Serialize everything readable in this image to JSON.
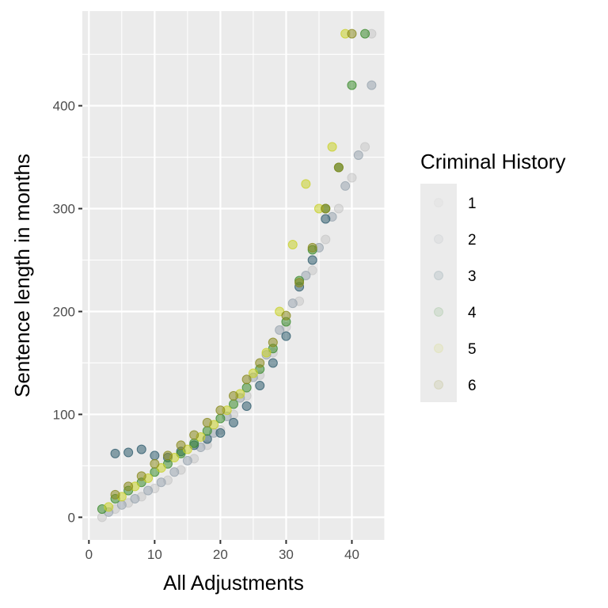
{
  "chart_data": {
    "type": "scatter",
    "title": "",
    "xlabel": "All Adjustments",
    "ylabel": "Sentence length in months",
    "xlim": [
      -1,
      45
    ],
    "ylim": [
      -22,
      492
    ],
    "x_ticks": [
      0,
      10,
      20,
      30,
      40
    ],
    "y_ticks": [
      0,
      100,
      200,
      300,
      400
    ],
    "grid": true,
    "panel_background": "#ebebeb",
    "legend": {
      "title": "Criminal History",
      "position": "right",
      "entries": [
        "1",
        "2",
        "3",
        "4",
        "5",
        "6"
      ]
    },
    "series": [
      {
        "name": "1",
        "color": "#c8c8c8",
        "points": [
          [
            2,
            0
          ],
          [
            4,
            8
          ],
          [
            6,
            14
          ],
          [
            8,
            20
          ],
          [
            10,
            28
          ],
          [
            12,
            36
          ],
          [
            14,
            46
          ],
          [
            16,
            57
          ],
          [
            18,
            70
          ],
          [
            20,
            85
          ],
          [
            22,
            100
          ],
          [
            24,
            118
          ],
          [
            26,
            138
          ],
          [
            28,
            160
          ],
          [
            30,
            185
          ],
          [
            32,
            210
          ],
          [
            34,
            240
          ],
          [
            36,
            270
          ],
          [
            38,
            300
          ],
          [
            40,
            330
          ],
          [
            42,
            360
          ],
          [
            43,
            470
          ]
        ]
      },
      {
        "name": "2",
        "color": "#9aa6b0",
        "points": [
          [
            3,
            5
          ],
          [
            5,
            12
          ],
          [
            7,
            18
          ],
          [
            9,
            26
          ],
          [
            11,
            34
          ],
          [
            13,
            44
          ],
          [
            15,
            55
          ],
          [
            17,
            68
          ],
          [
            19,
            82
          ],
          [
            21,
            98
          ],
          [
            23,
            116
          ],
          [
            25,
            136
          ],
          [
            27,
            158
          ],
          [
            29,
            182
          ],
          [
            31,
            208
          ],
          [
            33,
            235
          ],
          [
            35,
            262
          ],
          [
            37,
            292
          ],
          [
            39,
            322
          ],
          [
            41,
            352
          ],
          [
            43,
            420
          ]
        ]
      },
      {
        "name": "3",
        "color": "#2f5d6e",
        "points": [
          [
            4,
            62
          ],
          [
            6,
            63
          ],
          [
            8,
            66
          ],
          [
            10,
            60
          ],
          [
            12,
            58
          ],
          [
            14,
            64
          ],
          [
            16,
            70
          ],
          [
            18,
            76
          ],
          [
            20,
            82
          ],
          [
            22,
            92
          ],
          [
            24,
            108
          ],
          [
            26,
            128
          ],
          [
            28,
            150
          ],
          [
            30,
            176
          ],
          [
            32,
            224
          ],
          [
            34,
            250
          ],
          [
            36,
            290
          ]
        ]
      },
      {
        "name": "4",
        "color": "#3c8c2e",
        "points": [
          [
            2,
            8
          ],
          [
            4,
            18
          ],
          [
            6,
            26
          ],
          [
            8,
            34
          ],
          [
            10,
            44
          ],
          [
            12,
            52
          ],
          [
            14,
            62
          ],
          [
            16,
            72
          ],
          [
            18,
            84
          ],
          [
            20,
            96
          ],
          [
            22,
            110
          ],
          [
            24,
            126
          ],
          [
            26,
            144
          ],
          [
            28,
            164
          ],
          [
            30,
            190
          ],
          [
            32,
            230
          ],
          [
            34,
            260
          ],
          [
            36,
            300
          ],
          [
            38,
            340
          ],
          [
            40,
            420
          ],
          [
            42,
            470
          ]
        ]
      },
      {
        "name": "5",
        "color": "#c9d12a",
        "points": [
          [
            3,
            10
          ],
          [
            5,
            20
          ],
          [
            7,
            30
          ],
          [
            9,
            38
          ],
          [
            11,
            48
          ],
          [
            13,
            58
          ],
          [
            15,
            66
          ],
          [
            17,
            78
          ],
          [
            19,
            90
          ],
          [
            21,
            104
          ],
          [
            23,
            120
          ],
          [
            25,
            140
          ],
          [
            27,
            160
          ],
          [
            29,
            200
          ],
          [
            31,
            265
          ],
          [
            33,
            324
          ],
          [
            35,
            300
          ],
          [
            37,
            360
          ],
          [
            39,
            470
          ]
        ]
      },
      {
        "name": "6",
        "color": "#8a8b1f",
        "points": [
          [
            4,
            22
          ],
          [
            6,
            30
          ],
          [
            8,
            40
          ],
          [
            10,
            52
          ],
          [
            12,
            60
          ],
          [
            14,
            70
          ],
          [
            16,
            80
          ],
          [
            18,
            92
          ],
          [
            20,
            104
          ],
          [
            22,
            118
          ],
          [
            24,
            134
          ],
          [
            26,
            150
          ],
          [
            28,
            170
          ],
          [
            30,
            196
          ],
          [
            32,
            228
          ],
          [
            34,
            262
          ],
          [
            36,
            300
          ],
          [
            38,
            340
          ],
          [
            40,
            470
          ]
        ]
      }
    ]
  }
}
